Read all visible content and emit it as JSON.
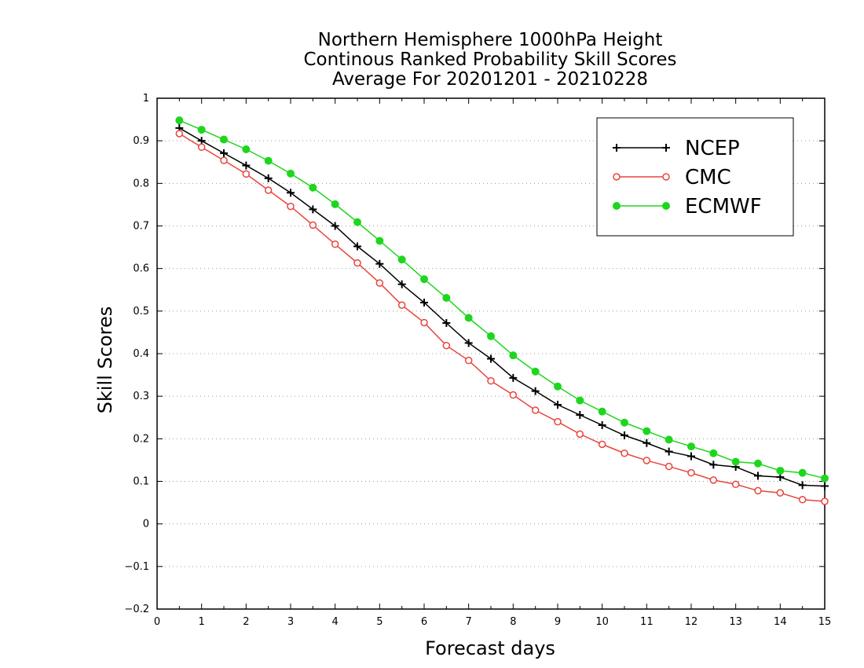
{
  "chart_data": {
    "type": "line",
    "title": [
      "Northern Hemisphere 1000hPa Height",
      "Continous Ranked Probability Skill Scores",
      "Average For 20201201 - 20210228"
    ],
    "xlabel": "Forecast days",
    "ylabel": "Skill Scores",
    "xlim": [
      0,
      15
    ],
    "ylim": [
      -0.2,
      1
    ],
    "xticks": [
      "0",
      "1",
      "2",
      "3",
      "4",
      "5",
      "6",
      "7",
      "8",
      "9",
      "10",
      "11",
      "12",
      "13",
      "14",
      "15"
    ],
    "yticks": [
      "1",
      "0.9",
      "0.8",
      "0.7",
      "0.6",
      "0.5",
      "0.4",
      "0.3",
      "0.2",
      "0.1",
      "0",
      "-0.1",
      "-0.2"
    ],
    "grid": "horizontal-dotted",
    "legend_position": "top-right",
    "x": [
      0.5,
      1,
      1.5,
      2,
      2.5,
      3,
      3.5,
      4,
      4.5,
      5,
      5.5,
      6,
      6.5,
      7,
      7.5,
      8,
      8.5,
      9,
      9.5,
      10,
      10.5,
      11,
      11.5,
      12,
      12.5,
      13,
      13.5,
      14,
      14.5,
      15
    ],
    "series": [
      {
        "name": "NCEP",
        "color": "#000000",
        "marker": "plus",
        "values": [
          0.93,
          0.9,
          0.871,
          0.842,
          0.812,
          0.778,
          0.739,
          0.7,
          0.652,
          0.611,
          0.563,
          0.52,
          0.472,
          0.425,
          0.388,
          0.343,
          0.312,
          0.28,
          0.256,
          0.232,
          0.208,
          0.19,
          0.17,
          0.159,
          0.139,
          0.134,
          0.113,
          0.11,
          0.091,
          0.089
        ]
      },
      {
        "name": "CMC",
        "color": "#e8453c",
        "marker": "open-circle",
        "values": [
          0.917,
          0.885,
          0.854,
          0.822,
          0.784,
          0.746,
          0.702,
          0.657,
          0.613,
          0.566,
          0.514,
          0.473,
          0.419,
          0.384,
          0.336,
          0.303,
          0.267,
          0.24,
          0.211,
          0.187,
          0.166,
          0.149,
          0.135,
          0.12,
          0.103,
          0.093,
          0.078,
          0.073,
          0.057,
          0.053
        ]
      },
      {
        "name": "ECMWF",
        "color": "#1ed61e",
        "marker": "filled-circle",
        "values": [
          0.948,
          0.926,
          0.903,
          0.88,
          0.853,
          0.823,
          0.79,
          0.751,
          0.709,
          0.665,
          0.621,
          0.575,
          0.531,
          0.484,
          0.441,
          0.396,
          0.358,
          0.323,
          0.29,
          0.264,
          0.238,
          0.218,
          0.198,
          0.182,
          0.166,
          0.146,
          0.142,
          0.125,
          0.12,
          0.107
        ]
      }
    ]
  }
}
